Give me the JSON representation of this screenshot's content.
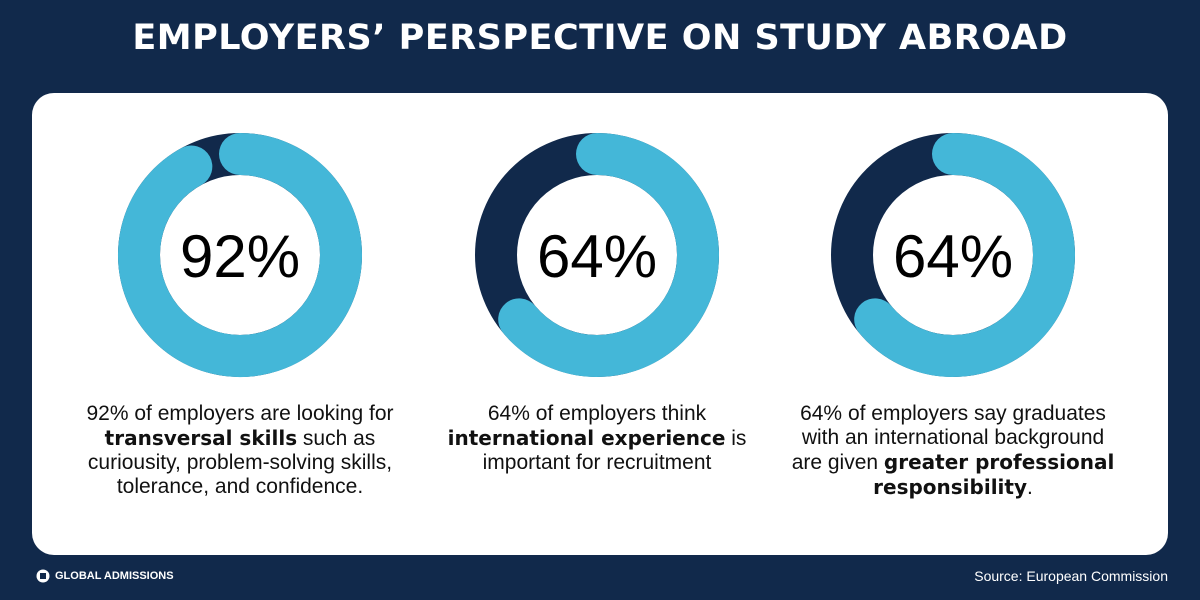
{
  "title": "EMPLOYERS’ PERSPECTIVE ON STUDY ABROAD",
  "brand": "GLOBAL ADMISSIONS",
  "source": "Source: European Commission",
  "chart_data": [
    {
      "type": "donut",
      "values": [
        92
      ],
      "value_labels": [
        "92%"
      ],
      "color": "#44b7d8",
      "track_color": "#11294b",
      "caption": [
        {
          "text": "92% of employers are looking for ",
          "bold": false
        },
        {
          "text": "transversal skills",
          "bold": true
        },
        {
          "text": " such as curiousity, problem-solving skills, tolerance, and confidence.",
          "bold": false
        }
      ]
    },
    {
      "type": "donut",
      "values": [
        64
      ],
      "value_labels": [
        "64%"
      ],
      "color": "#44b7d8",
      "track_color": "#11294b",
      "caption": [
        {
          "text": "64% of employers think ",
          "bold": false
        },
        {
          "text": "international experience",
          "bold": true
        },
        {
          "text": " is important for recruitment",
          "bold": false
        }
      ]
    },
    {
      "type": "donut",
      "values": [
        64
      ],
      "value_labels": [
        "64%"
      ],
      "color": "#44b7d8",
      "track_color": "#11294b",
      "caption": [
        {
          "text": "64% of employers say graduates with an international background are given ",
          "bold": false
        },
        {
          "text": "greater professional responsibility",
          "bold": true
        },
        {
          "text": ".",
          "bold": false
        }
      ]
    }
  ]
}
